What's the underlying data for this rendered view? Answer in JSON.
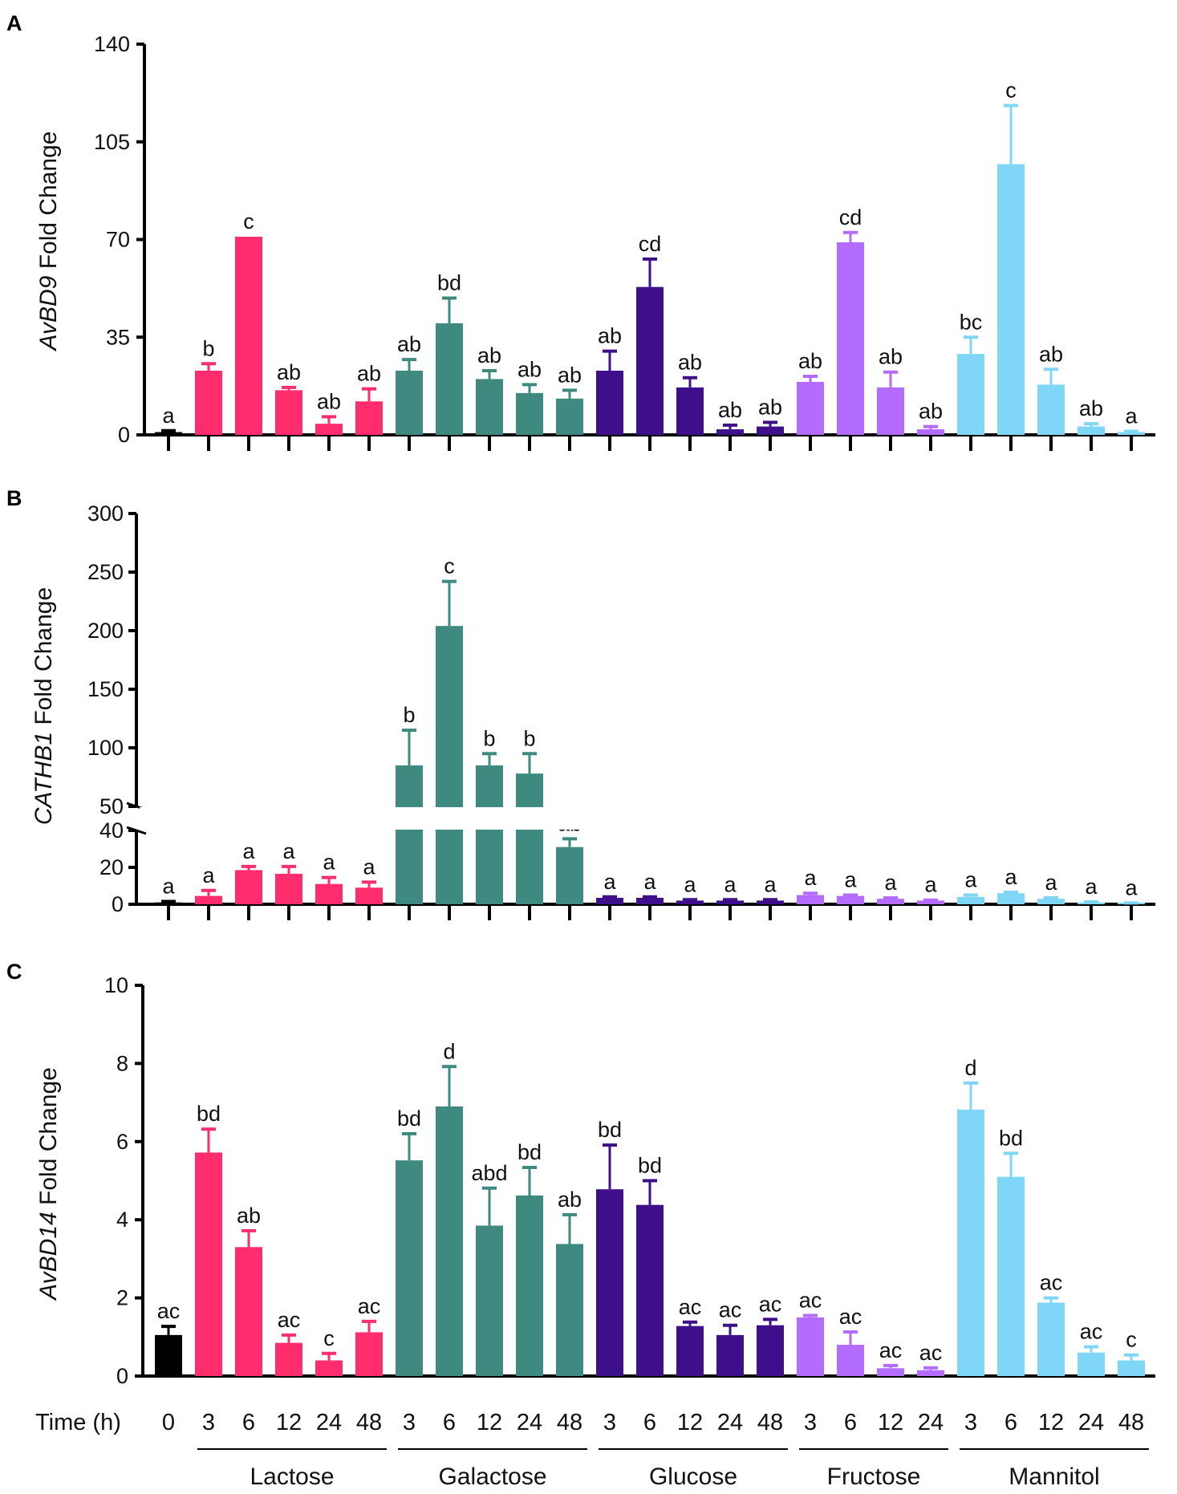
{
  "figure": {
    "time_label": "Time (h)",
    "x_tick_labels": [
      "0",
      "3",
      "6",
      "12",
      "24",
      "48",
      "3",
      "6",
      "12",
      "24",
      "48",
      "3",
      "6",
      "12",
      "24",
      "48",
      "3",
      "6",
      "12",
      "24",
      "3",
      "6",
      "12",
      "24",
      "48"
    ],
    "groups": [
      {
        "name": "Lactose",
        "first": 1,
        "last": 5
      },
      {
        "name": "Galactose",
        "first": 6,
        "last": 10
      },
      {
        "name": "Glucose",
        "first": 11,
        "last": 15
      },
      {
        "name": "Fructose",
        "first": 16,
        "last": 19
      },
      {
        "name": "Mannitol",
        "first": 20,
        "last": 24
      }
    ]
  },
  "colors": {
    "control": "#000000",
    "lactose": "#ff2d6e",
    "galactose": "#3e8a80",
    "glucose": "#3e0f8a",
    "fructose": "#b36cff",
    "mannitol": "#7fd6f7"
  },
  "bar_colors": [
    "control",
    "lactose",
    "lactose",
    "lactose",
    "lactose",
    "lactose",
    "galactose",
    "galactose",
    "galactose",
    "galactose",
    "galactose",
    "glucose",
    "glucose",
    "glucose",
    "glucose",
    "glucose",
    "fructose",
    "fructose",
    "fructose",
    "fructose",
    "mannitol",
    "mannitol",
    "mannitol",
    "mannitol",
    "mannitol"
  ],
  "chart_data": [
    {
      "panel": "A",
      "type": "bar",
      "ylabel_italic": "AvBD9",
      "ylabel_rest": " Fold Change",
      "ylim": [
        0,
        140
      ],
      "yticks": [
        0,
        35,
        70,
        105,
        140
      ],
      "values": [
        1,
        23,
        71,
        16,
        4,
        12,
        23,
        40,
        20,
        15,
        13,
        23,
        53,
        17,
        2,
        3,
        19,
        69,
        17,
        2,
        29,
        97,
        18,
        3,
        1
      ],
      "errors": [
        0.5,
        2.5,
        0,
        1,
        2.5,
        4.5,
        4,
        9,
        3,
        3,
        3,
        7,
        10,
        3.5,
        1.5,
        1.5,
        2,
        3.5,
        5.5,
        1,
        6,
        21,
        5.5,
        1,
        0.3
      ],
      "significance": [
        "a",
        "b",
        "c",
        "ab",
        "ab",
        "ab",
        "ab",
        "bd",
        "ab",
        "ab",
        "ab",
        "ab",
        "cd",
        "ab",
        "ab",
        "ab",
        "ab",
        "cd",
        "ab",
        "ab",
        "bc",
        "c",
        "ab",
        "ab",
        "a"
      ]
    },
    {
      "panel": "B",
      "type": "bar",
      "ylabel_italic": "CATHB1",
      "ylabel_rest": " Fold Change",
      "broken_axis": {
        "lower": [
          0,
          40
        ],
        "upper": [
          50,
          300
        ]
      },
      "yticks_lower": [
        0,
        20,
        40
      ],
      "yticks_upper": [
        50,
        100,
        150,
        200,
        250,
        300
      ],
      "values": [
        1,
        4.5,
        18.5,
        16.5,
        11,
        9,
        85,
        204,
        85,
        78,
        31,
        3.5,
        3.5,
        2,
        2,
        2,
        5,
        4.5,
        3,
        2,
        4,
        6,
        3,
        1,
        0.5
      ],
      "errors": [
        0.5,
        3,
        2,
        4,
        3.5,
        3,
        30,
        38,
        10,
        17,
        4.5,
        0.5,
        0.5,
        0.5,
        0.5,
        0.5,
        1,
        0.5,
        0.5,
        0.3,
        1,
        0.5,
        0.5,
        0.3,
        0.2
      ],
      "significance": [
        "a",
        "a",
        "a",
        "a",
        "a",
        "a",
        "b",
        "c",
        "b",
        "b",
        "ab",
        "a",
        "a",
        "a",
        "a",
        "a",
        "a",
        "a",
        "a",
        "a",
        "a",
        "a",
        "a",
        "a",
        "a"
      ]
    },
    {
      "panel": "C",
      "type": "bar",
      "ylabel_italic": "AvBD14",
      "ylabel_rest": " Fold Change",
      "ylim": [
        0,
        10
      ],
      "yticks": [
        0,
        2,
        4,
        6,
        8,
        10
      ],
      "values": [
        1.05,
        5.72,
        3.3,
        0.85,
        0.4,
        1.12,
        5.52,
        6.9,
        3.85,
        4.62,
        3.38,
        4.78,
        4.38,
        1.28,
        1.05,
        1.3,
        1.5,
        0.8,
        0.2,
        0.15,
        6.82,
        5.1,
        1.88,
        0.6,
        0.4
      ],
      "errors": [
        0.22,
        0.6,
        0.42,
        0.2,
        0.18,
        0.28,
        0.68,
        1.02,
        0.96,
        0.72,
        0.75,
        1.13,
        0.62,
        0.1,
        0.25,
        0.15,
        0.05,
        0.33,
        0.07,
        0.06,
        0.68,
        0.6,
        0.12,
        0.15,
        0.14
      ],
      "significance": [
        "ac",
        "bd",
        "ab",
        "ac",
        "c",
        "ac",
        "bd",
        "d",
        "abd",
        "bd",
        "ab",
        "bd",
        "bd",
        "ac",
        "ac",
        "ac",
        "ac",
        "ac",
        "ac",
        "ac",
        "d",
        "bd",
        "ac",
        "ac",
        "c"
      ]
    }
  ]
}
